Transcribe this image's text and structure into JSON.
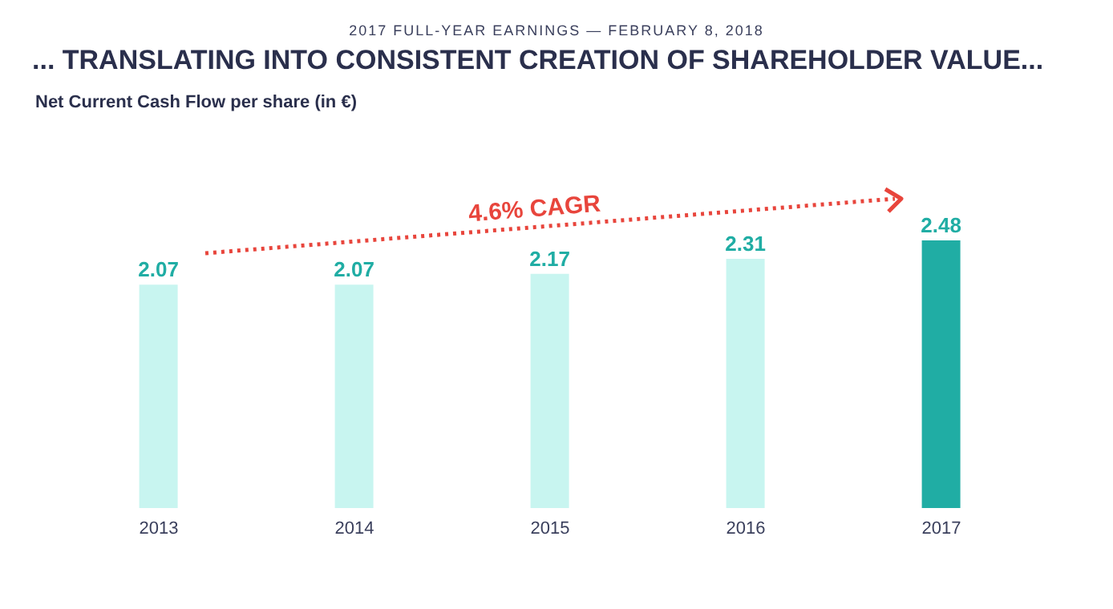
{
  "chart_data": {
    "type": "bar",
    "subtitle": "2017 FULL-YEAR EARNINGS — FEBRUARY 8, 2018",
    "title": "... TRANSLATING INTO CONSISTENT CREATION  OF SHAREHOLDER VALUE...",
    "categories": [
      "2013",
      "2014",
      "2015",
      "2016",
      "2017"
    ],
    "values": [
      2.07,
      2.07,
      2.17,
      2.31,
      2.48
    ],
    "colors": [
      "#c8f5f0",
      "#c8f5f0",
      "#c8f5f0",
      "#c8f5f0",
      "#20ada4"
    ],
    "data_labels": true,
    "grid": false,
    "annotations": [
      "Net Current Cash Flow per share (in €)",
      "4.6% CAGR"
    ]
  }
}
